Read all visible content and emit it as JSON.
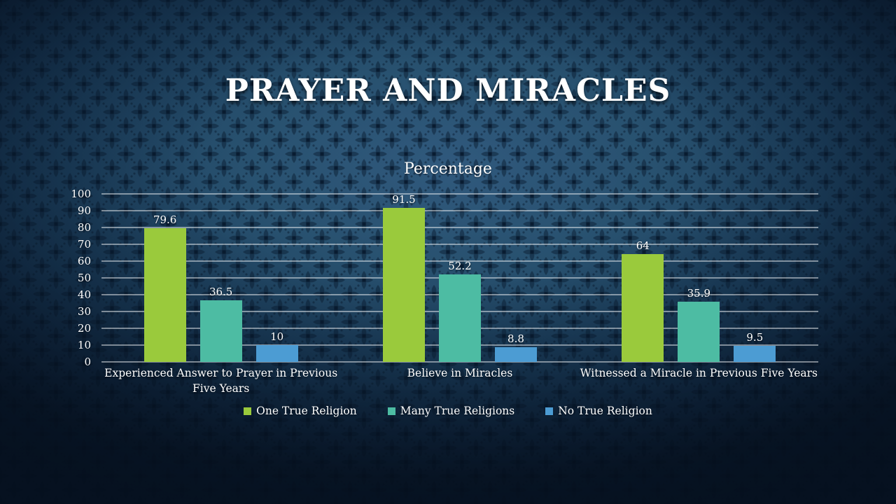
{
  "slide": {
    "title": "PRAYER AND MIRACLES"
  },
  "chart_data": {
    "type": "bar",
    "title": "Percentage",
    "categories": [
      "Experienced Answer to Prayer in Previous Five Years",
      "Believe in Miracles",
      "Witnessed a Miracle in Previous Five Years"
    ],
    "series": [
      {
        "name": "One True Religion",
        "color": "#9ACA3C",
        "values": [
          79.6,
          91.5,
          64
        ]
      },
      {
        "name": "Many True Religions",
        "color": "#4DBCA3",
        "values": [
          36.5,
          52.2,
          35.9
        ]
      },
      {
        "name": "No True Religion",
        "color": "#4C9CD3",
        "values": [
          10,
          8.8,
          9.5
        ]
      }
    ],
    "xlabel": "",
    "ylabel": "",
    "ylim": [
      0,
      100
    ],
    "yticks": [
      0,
      10,
      20,
      30,
      40,
      50,
      60,
      70,
      80,
      90,
      100
    ],
    "grid": true,
    "gridline_color": "#ffffff",
    "legend_position": "bottom",
    "text_color": "#ffffff",
    "background": {
      "center_color": "#30597d",
      "edge_color": "#0a1e33",
      "pattern": "damask"
    }
  }
}
